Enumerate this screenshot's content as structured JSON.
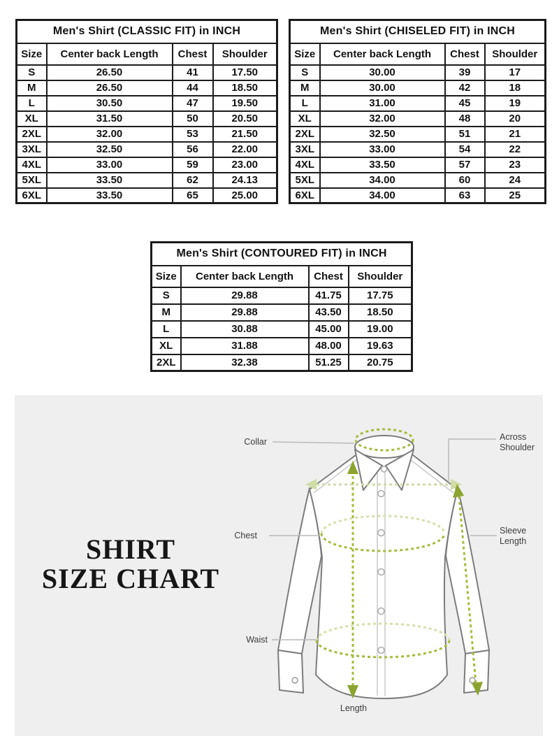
{
  "tables": [
    {
      "title": "Men's Shirt (CLASSIC FIT) in INCH",
      "columns": [
        "Size",
        "Center back Length",
        "Chest",
        "Shoulder"
      ],
      "rows": [
        [
          "S",
          "26.50",
          "41",
          "17.50"
        ],
        [
          "M",
          "26.50",
          "44",
          "18.50"
        ],
        [
          "L",
          "30.50",
          "47",
          "19.50"
        ],
        [
          "XL",
          "31.50",
          "50",
          "20.50"
        ],
        [
          "2XL",
          "32.00",
          "53",
          "21.50"
        ],
        [
          "3XL",
          "32.50",
          "56",
          "22.00"
        ],
        [
          "4XL",
          "33.00",
          "59",
          "23.00"
        ],
        [
          "5XL",
          "33.50",
          "62",
          "24.13"
        ],
        [
          "6XL",
          "33.50",
          "65",
          "25.00"
        ]
      ]
    },
    {
      "title": "Men's Shirt (CHISELED FIT) in INCH",
      "columns": [
        "Size",
        "Center back Length",
        "Chest",
        "Shoulder"
      ],
      "rows": [
        [
          "S",
          "30.00",
          "39",
          "17"
        ],
        [
          "M",
          "30.00",
          "42",
          "18"
        ],
        [
          "L",
          "31.00",
          "45",
          "19"
        ],
        [
          "XL",
          "32.00",
          "48",
          "20"
        ],
        [
          "2XL",
          "32.50",
          "51",
          "21"
        ],
        [
          "3XL",
          "33.00",
          "54",
          "22"
        ],
        [
          "4XL",
          "33.50",
          "57",
          "23"
        ],
        [
          "5XL",
          "34.00",
          "60",
          "24"
        ],
        [
          "6XL",
          "34.00",
          "63",
          "25"
        ]
      ]
    },
    {
      "title": "Men's Shirt (CONTOURED FIT) in INCH",
      "columns": [
        "Size",
        "Center back Length",
        "Chest",
        "Shoulder"
      ],
      "rows": [
        [
          "S",
          "29.88",
          "41.75",
          "17.75"
        ],
        [
          "M",
          "29.88",
          "43.50",
          "18.50"
        ],
        [
          "L",
          "30.88",
          "45.00",
          "19.00"
        ],
        [
          "XL",
          "31.88",
          "48.00",
          "19.63"
        ],
        [
          "2XL",
          "32.38",
          "51.25",
          "20.75"
        ]
      ]
    }
  ],
  "diagram": {
    "heading_line1": "SHIRT",
    "heading_line2": "SIZE CHART",
    "labels": {
      "collar": "Collar",
      "chest": "Chest",
      "waist": "Waist",
      "length": "Length",
      "across_shoulder": "Across Shoulder",
      "sleeve_length": "Sleeve Length"
    },
    "colors": {
      "panel_background": "#efefef",
      "measure_green": "#a3bc3a",
      "measure_green_faded": "#cfdca6",
      "arrow_green": "#8ca32f",
      "shirt_outline": "#7c7c7c",
      "connector_gray": "#b9b9b9",
      "label_text": "#3d3d3d",
      "table_border": "#1b1b1b"
    }
  }
}
